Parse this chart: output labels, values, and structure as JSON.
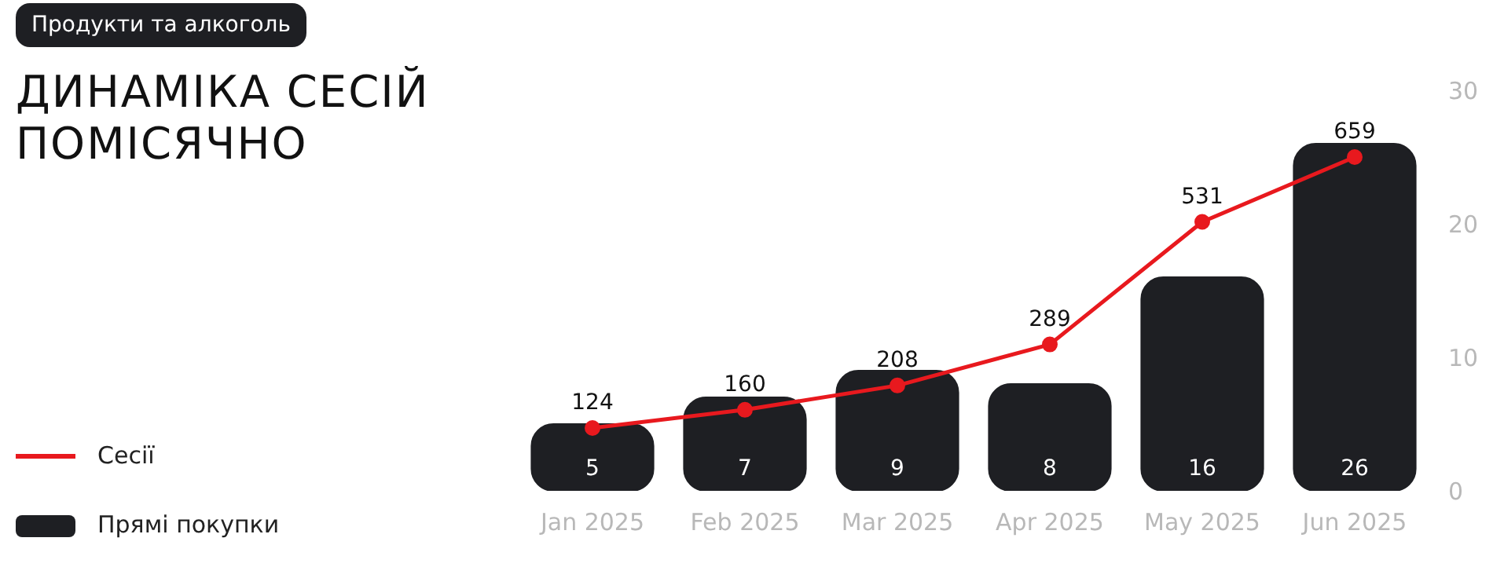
{
  "chart_data": {
    "type": "bar",
    "subtitle": "Продукти та алкоголь",
    "title": "ДИНАМІКА СЕСІЙ\nПОМІСЯЧНО",
    "categories": [
      "Jan 2025",
      "Feb 2025",
      "Mar 2025",
      "Apr 2025",
      "May 2025",
      "Jun 2025"
    ],
    "series": [
      {
        "name": "Сесії",
        "type": "line",
        "color": "#e8191e",
        "values": [
          124,
          160,
          208,
          289,
          531,
          659
        ]
      },
      {
        "name": "Прямі покупки",
        "axis": "y2",
        "color": "#1e1f23",
        "values": [
          5,
          7,
          9,
          8,
          16,
          26
        ]
      }
    ],
    "y2lim": [
      0,
      30
    ],
    "y2ticks": [
      0,
      10,
      20,
      30
    ],
    "data_labels": true,
    "marker": "circle",
    "grid": false,
    "legend": "bottom left"
  }
}
